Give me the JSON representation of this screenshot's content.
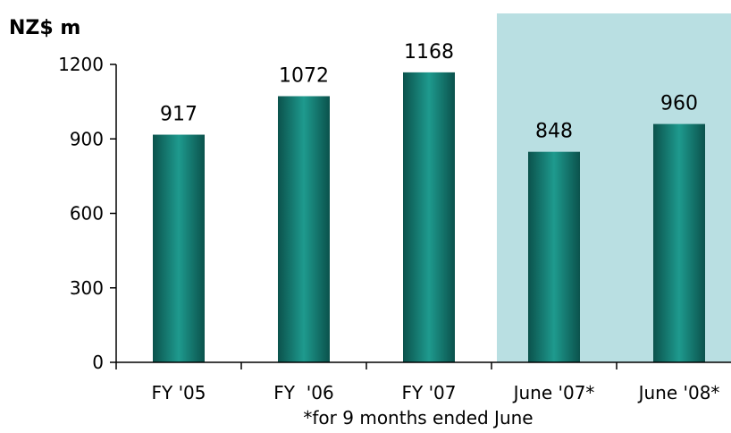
{
  "chart_data": {
    "type": "bar",
    "ylabel": "NZ$ m",
    "categories": [
      "FY '05",
      "FY  '06",
      "FY '07",
      "June '07*",
      "June '08*"
    ],
    "values": [
      917,
      1072,
      1168,
      848,
      960
    ],
    "data_labels": [
      "917",
      "1072",
      "1168",
      "848",
      "960"
    ],
    "ylim": [
      0,
      1200
    ],
    "yticks": [
      0,
      300,
      600,
      900,
      1200
    ],
    "grid": false,
    "highlight_categories": [
      "June '07*",
      "June '08*"
    ],
    "footnote": "*for 9 months ended June",
    "colors": {
      "bar_dark": "#0b524c",
      "bar_light": "#1e9a8e",
      "highlight_background": "#b9dfe2",
      "axis": "#000000"
    }
  }
}
